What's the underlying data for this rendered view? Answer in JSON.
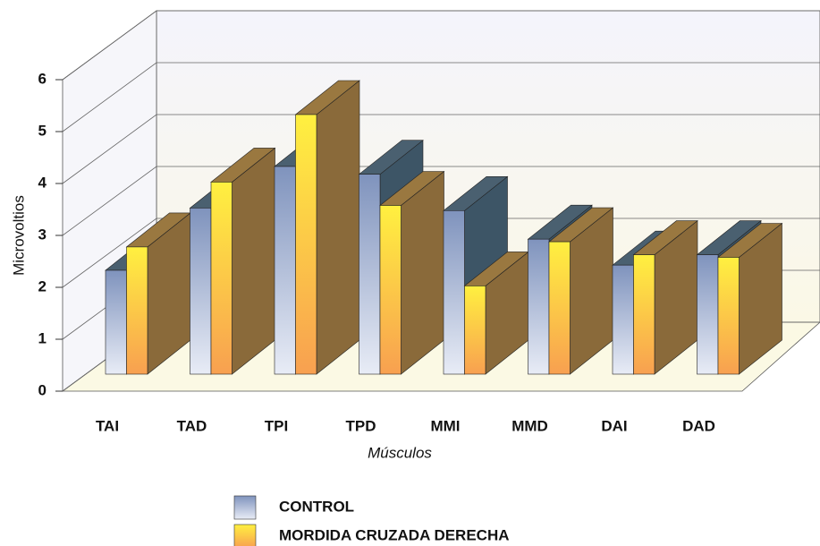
{
  "chart_data": {
    "type": "bar3d",
    "x_label": "Músculos",
    "y_label": "Microvoltios",
    "categories": [
      "TAI",
      "TAD",
      "TPI",
      "TPD",
      "MMI",
      "MMD",
      "DAI",
      "DAD"
    ],
    "series": [
      {
        "name": "CONTROL",
        "color": "#8fa2c8",
        "values": [
          2.0,
          3.2,
          4.0,
          3.85,
          3.15,
          2.6,
          2.1,
          2.3
        ]
      },
      {
        "name": "MORDIDA CRUZADA DERECHA",
        "color": "#ffd23a",
        "values": [
          2.45,
          3.7,
          5.0,
          3.25,
          1.7,
          2.55,
          2.3,
          2.25
        ]
      }
    ],
    "ylim": [
      0,
      6
    ],
    "yticks": [
      0,
      1,
      2,
      3,
      4,
      5,
      6
    ],
    "grid": true
  }
}
